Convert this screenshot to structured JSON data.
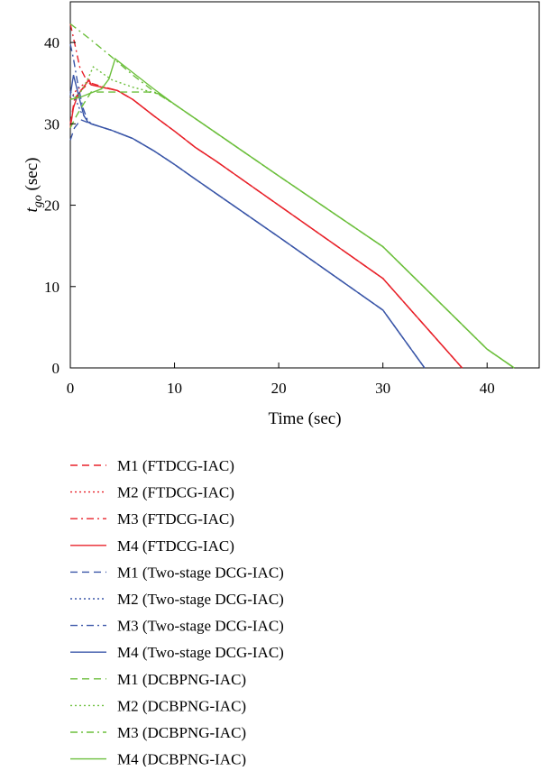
{
  "chart_data": {
    "type": "line",
    "xlabel": "Time (sec)",
    "ylabel_main": "t",
    "ylabel_sub": "go",
    "ylabel_unit": " (sec)",
    "xlim": [
      0,
      45
    ],
    "ylim": [
      0,
      45
    ],
    "xticks": [
      0,
      10,
      20,
      30,
      40
    ],
    "yticks": [
      0,
      10,
      20,
      30,
      40
    ],
    "grid": false,
    "legend_position": "below",
    "colors": {
      "red": "#e8222a",
      "blue": "#3a56a8",
      "green": "#6cbf3c"
    },
    "series": [
      {
        "name": "M1 (FTDCG-IAC)",
        "color": "#e8222a",
        "dash": "dashed",
        "points": [
          [
            0,
            30
          ],
          [
            0.4,
            33
          ],
          [
            0.9,
            34
          ],
          [
            1.8,
            35
          ],
          [
            2,
            34.8
          ],
          [
            3,
            34.5
          ],
          [
            4.5,
            34.1
          ],
          [
            6,
            33
          ],
          [
            8,
            31
          ],
          [
            10,
            29.1
          ],
          [
            12,
            27.1
          ],
          [
            14,
            25.4
          ],
          [
            20,
            20.0
          ],
          [
            30,
            11.0
          ],
          [
            37.6,
            0
          ]
        ]
      },
      {
        "name": "M2 (FTDCG-IAC)",
        "color": "#e8222a",
        "dash": "dotted",
        "points": [
          [
            0,
            33
          ],
          [
            0.5,
            34
          ],
          [
            1,
            34.6
          ],
          [
            1.8,
            35.3
          ],
          [
            2,
            34.8
          ],
          [
            3,
            34.5
          ],
          [
            4.5,
            34.1
          ],
          [
            6,
            33
          ],
          [
            8,
            31
          ],
          [
            10,
            29.1
          ],
          [
            12,
            27.1
          ],
          [
            14,
            25.4
          ],
          [
            20,
            20.0
          ],
          [
            30,
            11.0
          ],
          [
            37.6,
            0
          ]
        ]
      },
      {
        "name": "M3 (FTDCG-IAC)",
        "color": "#e8222a",
        "dash": "dashdot",
        "points": [
          [
            0,
            42.3
          ],
          [
            0.4,
            40
          ],
          [
            0.9,
            37
          ],
          [
            1.5,
            35.5
          ],
          [
            2,
            35
          ],
          [
            3,
            34.6
          ],
          [
            4.5,
            34.1
          ],
          [
            6,
            33
          ],
          [
            8,
            31
          ],
          [
            10,
            29.1
          ],
          [
            12,
            27.1
          ],
          [
            14,
            25.4
          ],
          [
            20,
            20.0
          ],
          [
            30,
            11.0
          ],
          [
            37.6,
            0
          ]
        ]
      },
      {
        "name": "M4 (FTDCG-IAC)",
        "color": "#e8222a",
        "dash": "solid",
        "points": [
          [
            0,
            29.5
          ],
          [
            0.3,
            32
          ],
          [
            0.7,
            33.5
          ],
          [
            1.2,
            34.4
          ],
          [
            1.8,
            35.4
          ],
          [
            2,
            34.8
          ],
          [
            3,
            34.5
          ],
          [
            4.5,
            34.1
          ],
          [
            6,
            33
          ],
          [
            8,
            31
          ],
          [
            10,
            29.1
          ],
          [
            12,
            27.1
          ],
          [
            14,
            25.4
          ],
          [
            20,
            20.0
          ],
          [
            30,
            11.0
          ],
          [
            37.6,
            0
          ]
        ]
      },
      {
        "name": "M1 (Two-stage DCG-IAC)",
        "color": "#3a56a8",
        "dash": "dashed",
        "points": [
          [
            0,
            28
          ],
          [
            0.4,
            29.5
          ],
          [
            1,
            30.5
          ],
          [
            1.6,
            30.2
          ],
          [
            2,
            30
          ],
          [
            4,
            29.2
          ],
          [
            6,
            28.2
          ],
          [
            8,
            26.7
          ],
          [
            10,
            25
          ],
          [
            12,
            23.2
          ],
          [
            20,
            16.1
          ],
          [
            30,
            7.1
          ],
          [
            34,
            0
          ]
        ]
      },
      {
        "name": "M2 (Two-stage DCG-IAC)",
        "color": "#3a56a8",
        "dash": "dotted",
        "points": [
          [
            0,
            34
          ],
          [
            0.5,
            33
          ],
          [
            1,
            31.5
          ],
          [
            1.6,
            30.5
          ],
          [
            2,
            30
          ],
          [
            4,
            29.2
          ],
          [
            6,
            28.2
          ],
          [
            8,
            26.7
          ],
          [
            10,
            25
          ],
          [
            12,
            23.2
          ],
          [
            20,
            16.1
          ],
          [
            30,
            7.1
          ],
          [
            34,
            0
          ]
        ]
      },
      {
        "name": "M3 (Two-stage DCG-IAC)",
        "color": "#3a56a8",
        "dash": "dashdot",
        "points": [
          [
            0,
            39.8
          ],
          [
            0.3,
            38
          ],
          [
            0.7,
            35
          ],
          [
            1.2,
            32
          ],
          [
            1.6,
            30.6
          ],
          [
            2,
            30
          ],
          [
            4,
            29.2
          ],
          [
            6,
            28.2
          ],
          [
            8,
            26.7
          ],
          [
            10,
            25
          ],
          [
            12,
            23.2
          ],
          [
            20,
            16.1
          ],
          [
            30,
            7.1
          ],
          [
            34,
            0
          ]
        ]
      },
      {
        "name": "M4 (Two-stage DCG-IAC)",
        "color": "#3a56a8",
        "dash": "solid",
        "points": [
          [
            0,
            33.5
          ],
          [
            0.3,
            36
          ],
          [
            0.8,
            33.5
          ],
          [
            1.3,
            31
          ],
          [
            1.7,
            30.2
          ],
          [
            2,
            30
          ],
          [
            4,
            29.2
          ],
          [
            6,
            28.2
          ],
          [
            8,
            26.7
          ],
          [
            10,
            25
          ],
          [
            12,
            23.2
          ],
          [
            20,
            16.1
          ],
          [
            30,
            7.1
          ],
          [
            34,
            0
          ]
        ]
      },
      {
        "name": "M1 (DCBPNG-IAC)",
        "color": "#6cbf3c",
        "dash": "dashed",
        "points": [
          [
            0,
            29.5
          ],
          [
            0.6,
            31
          ],
          [
            1.3,
            32.5
          ],
          [
            2,
            33.9
          ],
          [
            4,
            33.9
          ],
          [
            6,
            33.9
          ],
          [
            7.5,
            33.9
          ],
          [
            8.5,
            33.7
          ],
          [
            10,
            32.4
          ],
          [
            20,
            23.6
          ],
          [
            30,
            14.9
          ],
          [
            40,
            2.3
          ],
          [
            42.6,
            0
          ]
        ]
      },
      {
        "name": "M2 (DCBPNG-IAC)",
        "color": "#6cbf3c",
        "dash": "dotted",
        "points": [
          [
            0,
            33
          ],
          [
            0.8,
            33.5
          ],
          [
            1.5,
            35
          ],
          [
            2.2,
            37
          ],
          [
            4,
            35.4
          ],
          [
            6,
            34.5
          ],
          [
            7.5,
            34
          ],
          [
            8.5,
            33.7
          ],
          [
            10,
            32.4
          ],
          [
            20,
            23.6
          ],
          [
            30,
            14.9
          ],
          [
            40,
            2.3
          ],
          [
            42.6,
            0
          ]
        ]
      },
      {
        "name": "M3 (DCBPNG-IAC)",
        "color": "#6cbf3c",
        "dash": "dashdot",
        "points": [
          [
            0,
            42.3
          ],
          [
            2,
            40.3
          ],
          [
            4,
            38.2
          ],
          [
            6,
            36
          ],
          [
            8,
            34
          ],
          [
            9,
            33.2
          ],
          [
            10,
            32.4
          ],
          [
            20,
            23.6
          ],
          [
            30,
            14.9
          ],
          [
            40,
            2.3
          ],
          [
            42.6,
            0
          ]
        ]
      },
      {
        "name": "M4 (DCBPNG-IAC)",
        "color": "#6cbf3c",
        "dash": "solid",
        "points": [
          [
            0,
            33
          ],
          [
            1,
            33.3
          ],
          [
            2,
            33.8
          ],
          [
            3,
            34.3
          ],
          [
            3.7,
            35.5
          ],
          [
            4.3,
            38
          ],
          [
            6,
            36.3
          ],
          [
            8,
            34.3
          ],
          [
            10,
            32.4
          ],
          [
            20,
            23.6
          ],
          [
            30,
            14.9
          ],
          [
            40,
            2.3
          ],
          [
            42.6,
            0
          ]
        ]
      }
    ]
  }
}
